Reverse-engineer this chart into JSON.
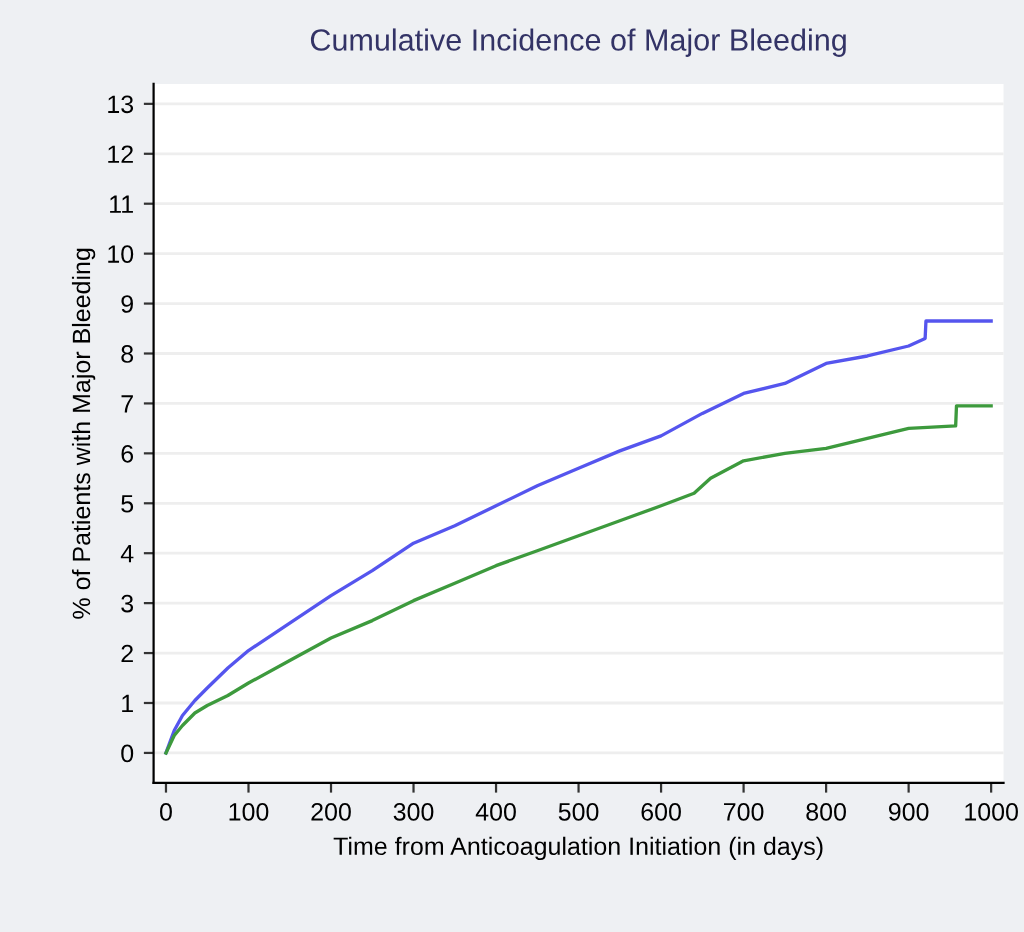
{
  "chart_data": {
    "type": "line",
    "title": "Cumulative Incidence of Major Bleeding",
    "xlabel": "Time from Anticoagulation Initiation (in days)",
    "ylabel": "% of Patients with Major Bleeding",
    "xlim": [
      -15,
      1015
    ],
    "ylim": [
      -0.6,
      13.4
    ],
    "xticks": [
      0,
      100,
      200,
      300,
      400,
      500,
      600,
      700,
      800,
      900,
      1000
    ],
    "yticks": [
      0,
      1,
      2,
      3,
      4,
      5,
      6,
      7,
      8,
      9,
      10,
      11,
      12,
      13
    ],
    "grid": "y",
    "legend": false,
    "line_style": "solid",
    "series": [
      {
        "color": "#5555ee",
        "x": [
          0,
          10,
          20,
          35,
          50,
          75,
          100,
          150,
          200,
          250,
          300,
          350,
          400,
          450,
          500,
          550,
          600,
          650,
          700,
          750,
          800,
          850,
          900,
          920,
          921,
          1000
        ],
        "values": [
          0,
          0.45,
          0.75,
          1.05,
          1.3,
          1.7,
          2.05,
          2.6,
          3.15,
          3.65,
          4.2,
          4.55,
          4.95,
          5.35,
          5.7,
          6.05,
          6.35,
          6.8,
          7.2,
          7.4,
          7.8,
          7.95,
          8.15,
          8.3,
          8.65,
          8.65
        ]
      },
      {
        "color": "#3d9a3d",
        "x": [
          0,
          10,
          20,
          35,
          50,
          75,
          100,
          150,
          200,
          250,
          300,
          350,
          400,
          450,
          500,
          550,
          600,
          640,
          660,
          700,
          750,
          800,
          850,
          900,
          957,
          958,
          1000
        ],
        "values": [
          0,
          0.35,
          0.55,
          0.8,
          0.95,
          1.15,
          1.4,
          1.85,
          2.3,
          2.65,
          3.05,
          3.4,
          3.75,
          4.05,
          4.35,
          4.65,
          4.95,
          5.2,
          5.5,
          5.85,
          6.0,
          6.1,
          6.3,
          6.5,
          6.55,
          6.95,
          6.95
        ]
      }
    ]
  }
}
